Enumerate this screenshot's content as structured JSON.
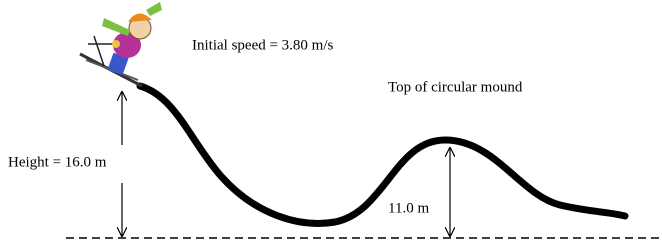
{
  "labels": {
    "initial_speed": "Initial speed = 3.80 m/s",
    "mound_top": "Top of circular mound",
    "height": "Height = 16.0 m",
    "mound_height": "11.0 m"
  }
}
